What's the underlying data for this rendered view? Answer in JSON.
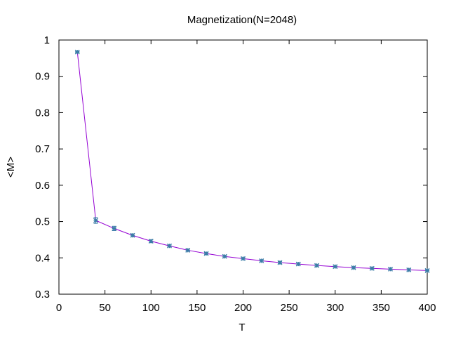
{
  "chart_data": {
    "type": "line",
    "title": "Magnetization(N=2048)",
    "xlabel": "T",
    "ylabel": "<M>",
    "xlim": [
      0,
      400
    ],
    "ylim": [
      0.3,
      1
    ],
    "x_ticks": [
      0,
      50,
      100,
      150,
      200,
      250,
      300,
      350,
      400
    ],
    "y_ticks": [
      0.3,
      0.4,
      0.5,
      0.6,
      0.7,
      0.8,
      0.9,
      1
    ],
    "y_tick_labels": [
      "0.3",
      "0.4",
      "0.5",
      "0.6",
      "0.7",
      "0.8",
      "0.9",
      "1"
    ],
    "grid": false,
    "series": [
      {
        "x": [
          20,
          40,
          60,
          80,
          100,
          120,
          140,
          160,
          180,
          200,
          220,
          240,
          260,
          280,
          300,
          320,
          340,
          360,
          380,
          400
        ],
        "y": [
          0.967,
          0.503,
          0.481,
          0.462,
          0.446,
          0.433,
          0.421,
          0.412,
          0.404,
          0.398,
          0.392,
          0.387,
          0.383,
          0.379,
          0.376,
          0.373,
          0.371,
          0.369,
          0.367,
          0.365
        ],
        "errors": [
          0.002,
          0.008,
          0.006,
          0.004,
          0.004,
          0.003,
          0.003,
          0.003,
          0.003,
          0.003,
          0.003,
          0.003,
          0.003,
          0.003,
          0.003,
          0.003,
          0.003,
          0.003,
          0.003,
          0.003
        ],
        "line_color": "#9400d3",
        "marker_color": "#3b7ca7"
      }
    ]
  }
}
